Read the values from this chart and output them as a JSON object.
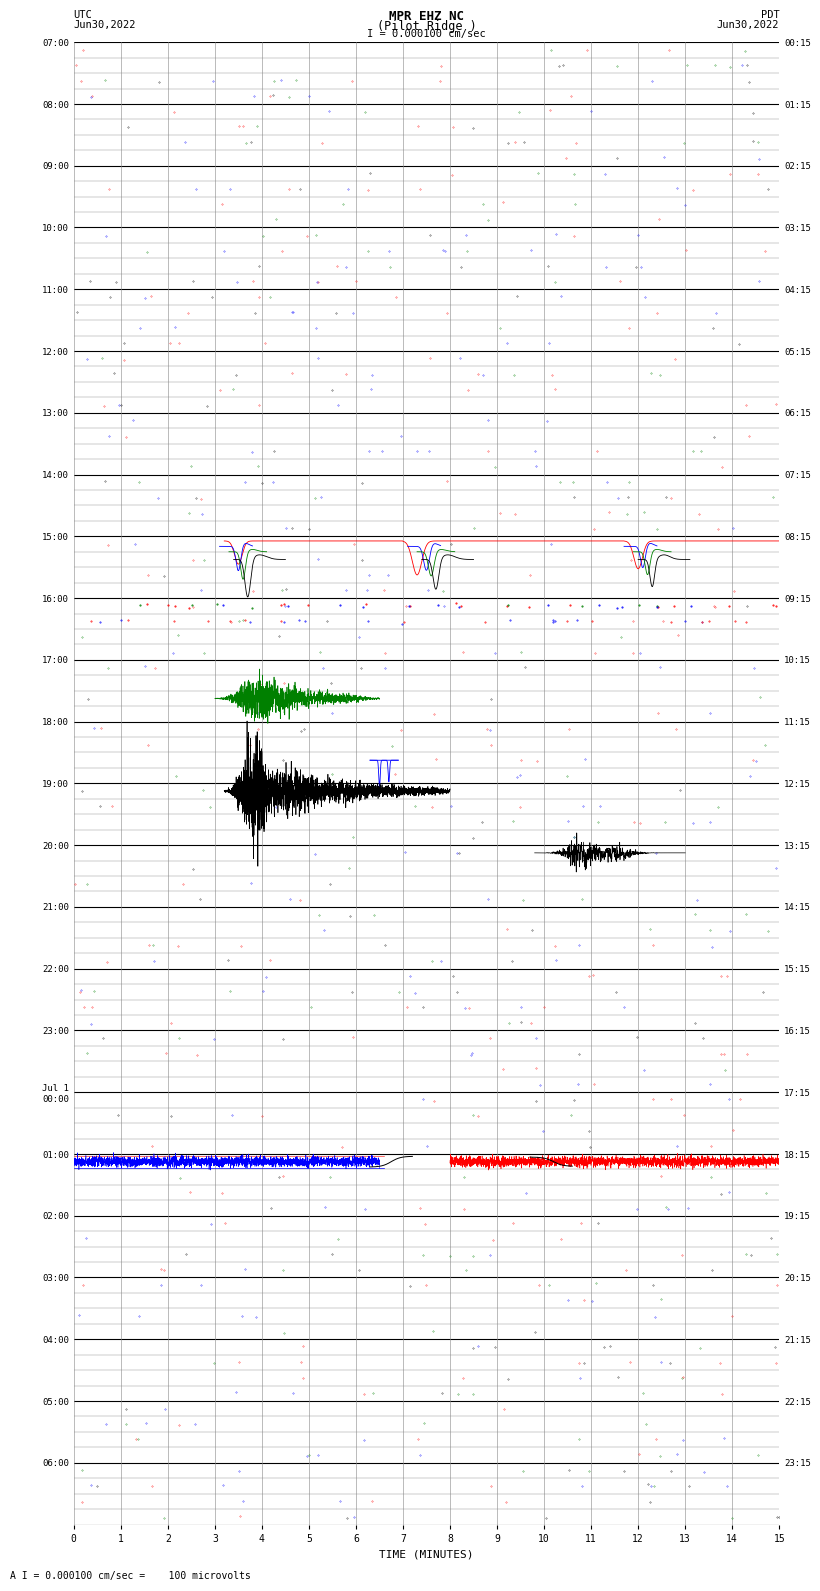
{
  "title_line1": "MPR EHZ NC",
  "title_line2": "(Pilot Ridge )",
  "scale_label": "I = 0.000100 cm/sec",
  "footer_label": "A I = 0.000100 cm/sec =    100 microvolts",
  "left_header": "UTC\nJun30,2022",
  "right_header": "PDT\nJun30,2022",
  "xlabel": "TIME (MINUTES)",
  "left_times": [
    "07:00",
    "",
    "",
    "",
    "08:00",
    "",
    "",
    "",
    "09:00",
    "",
    "",
    "",
    "10:00",
    "",
    "",
    "",
    "11:00",
    "",
    "",
    "",
    "12:00",
    "",
    "",
    "",
    "13:00",
    "",
    "",
    "",
    "14:00",
    "",
    "",
    "",
    "15:00",
    "",
    "",
    "",
    "16:00",
    "",
    "",
    "",
    "17:00",
    "",
    "",
    "",
    "18:00",
    "",
    "",
    "",
    "19:00",
    "",
    "",
    "",
    "20:00",
    "",
    "",
    "",
    "21:00",
    "",
    "",
    "",
    "22:00",
    "",
    "",
    "",
    "23:00",
    "",
    "",
    "",
    "Jul 1\n00:00",
    "",
    "",
    "",
    "01:00",
    "",
    "",
    "",
    "02:00",
    "",
    "",
    "",
    "03:00",
    "",
    "",
    "",
    "04:00",
    "",
    "",
    "",
    "05:00",
    "",
    "",
    "",
    "06:00",
    "",
    "",
    ""
  ],
  "right_times": [
    "00:15",
    "",
    "",
    "",
    "01:15",
    "",
    "",
    "",
    "02:15",
    "",
    "",
    "",
    "03:15",
    "",
    "",
    "",
    "04:15",
    "",
    "",
    "",
    "05:15",
    "",
    "",
    "",
    "06:15",
    "",
    "",
    "",
    "07:15",
    "",
    "",
    "",
    "08:15",
    "",
    "",
    "",
    "09:15",
    "",
    "",
    "",
    "10:15",
    "",
    "",
    "",
    "11:15",
    "",
    "",
    "",
    "12:15",
    "",
    "",
    "",
    "13:15",
    "",
    "",
    "",
    "14:15",
    "",
    "",
    "",
    "15:15",
    "",
    "",
    "",
    "16:15",
    "",
    "",
    "",
    "17:15",
    "",
    "",
    "",
    "18:15",
    "",
    "",
    "",
    "19:15",
    "",
    "",
    "",
    "20:15",
    "",
    "",
    "",
    "21:15",
    "",
    "",
    "",
    "22:15",
    "",
    "",
    "",
    "23:15",
    "",
    "",
    ""
  ],
  "num_rows": 96,
  "num_cols": 15,
  "bg_color": "#ffffff",
  "grid_major_color": "#000000",
  "grid_minor_color": "#888888",
  "line_color_default": "#000000"
}
